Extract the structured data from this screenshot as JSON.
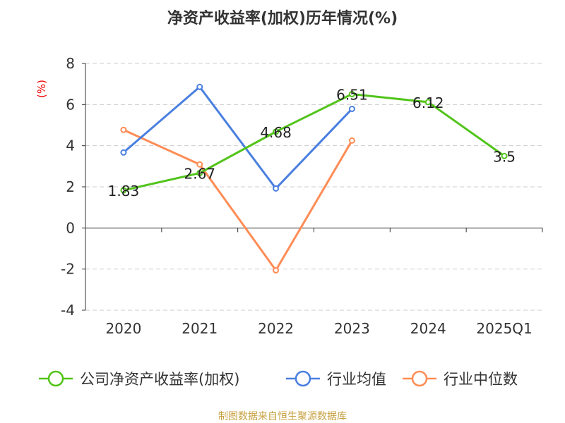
{
  "chart_data": {
    "type": "line",
    "title": "净资产收益率(加权)历年情况(%)",
    "ylabel": "(%)",
    "xlabel": "",
    "categories": [
      "2020",
      "2021",
      "2022",
      "2023",
      "2024",
      "2025Q1"
    ],
    "ylim": [
      -4,
      8
    ],
    "yticks": [
      -4,
      -2,
      0,
      2,
      4,
      6,
      8
    ],
    "grid": true,
    "legend_position": "bottom",
    "series": [
      {
        "name": "公司净资产收益率(加权)",
        "color": "#52c41a",
        "values": [
          1.83,
          2.67,
          4.68,
          6.51,
          6.12,
          3.5
        ],
        "labels": [
          "1.83",
          "2.67",
          "4.68",
          "6.51",
          "6.12",
          "3.5"
        ]
      },
      {
        "name": "行业均值",
        "color": "#4a7fe0",
        "values": [
          3.67,
          6.86,
          1.92,
          5.79,
          null,
          null
        ]
      },
      {
        "name": "行业中位数",
        "color": "#ff8c55",
        "values": [
          4.77,
          3.09,
          -2.06,
          4.25,
          null,
          null
        ]
      }
    ]
  },
  "footer": "制图数据来自恒生聚源数据库"
}
